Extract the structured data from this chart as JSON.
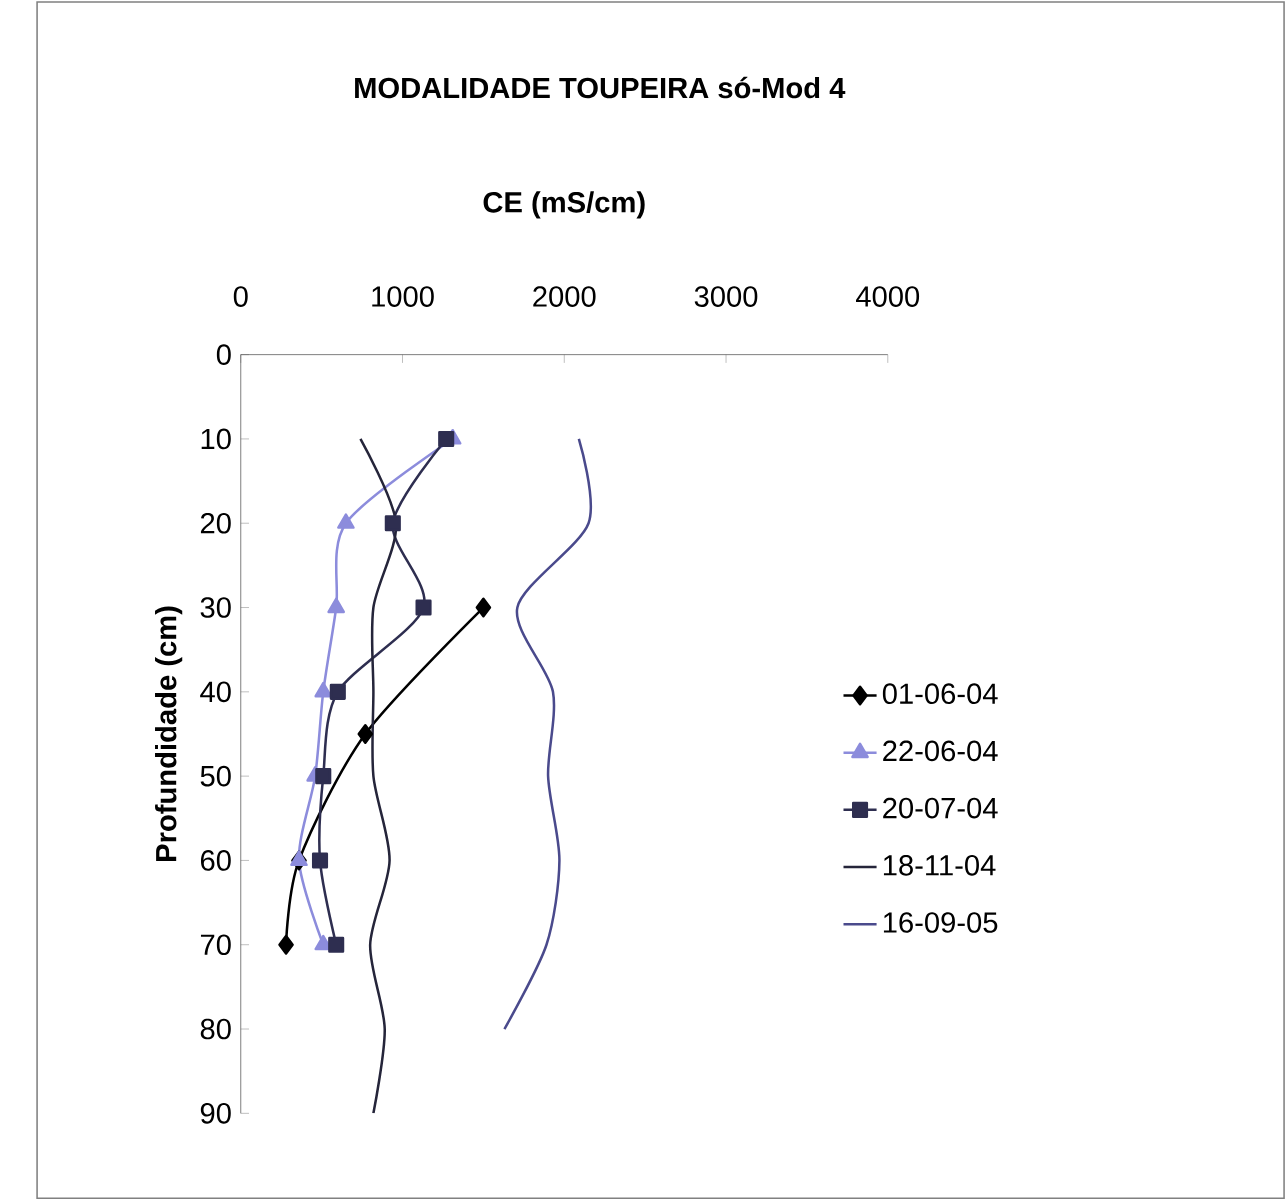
{
  "chart_data": {
    "type": "line",
    "title": "MODALIDADE TOUPEIRA só-Mod 4",
    "xlabel": "CE (mS/cm)",
    "ylabel": "Profundidade (cm)",
    "xlim": [
      0,
      4000
    ],
    "xticks": [
      0,
      1000,
      2000,
      3000,
      4000
    ],
    "ylim": [
      90,
      0
    ],
    "yticks": [
      0,
      10,
      20,
      30,
      40,
      50,
      60,
      70,
      80,
      90
    ],
    "legend": "right",
    "grid": false,
    "line_style": "solid",
    "series": [
      {
        "name": "01-06-04",
        "color": "#000000",
        "marker": "diamond",
        "x": [
          1500,
          770,
          360,
          280
        ],
        "values": [
          30,
          45,
          60,
          70
        ]
      },
      {
        "name": "22-06-04",
        "color": "#8c8cdc",
        "marker": "triangle",
        "x": [
          1310,
          650,
          590,
          510,
          460,
          360,
          510
        ],
        "values": [
          10,
          20,
          30,
          40,
          50,
          60,
          70
        ]
      },
      {
        "name": "20-07-04",
        "color": "#2e2e50",
        "marker": "square",
        "x": [
          1270,
          940,
          1130,
          600,
          510,
          490,
          590
        ],
        "values": [
          10,
          20,
          30,
          40,
          50,
          60,
          70
        ]
      },
      {
        "name": "18-11-04",
        "color": "#25253a",
        "marker": "none",
        "x": [
          740,
          960,
          820,
          820,
          820,
          920,
          800,
          890,
          820
        ],
        "values": [
          10,
          20,
          30,
          40,
          50,
          60,
          70,
          80,
          90
        ]
      },
      {
        "name": "16-09-05",
        "color": "#4a4a8c",
        "marker": "none",
        "x": [
          2090,
          2150,
          1710,
          1930,
          1900,
          1970,
          1890,
          1630
        ],
        "values": [
          10,
          20,
          30,
          40,
          50,
          60,
          70,
          80
        ]
      }
    ]
  }
}
